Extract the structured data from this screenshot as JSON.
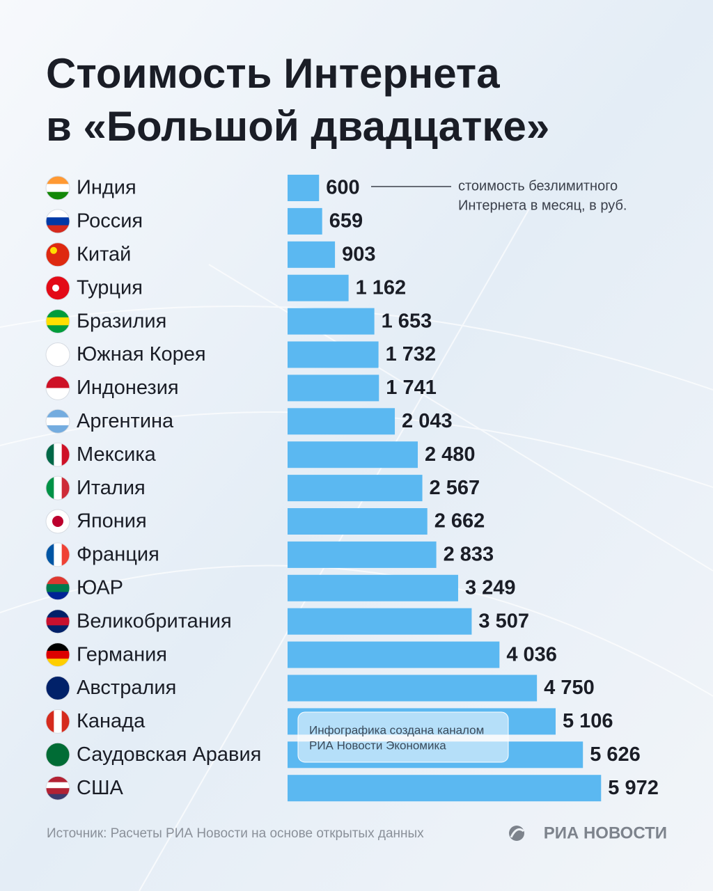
{
  "chart_data": {
    "type": "bar",
    "orientation": "horizontal",
    "title": [
      "Стоимость Интернета",
      "в «Большой двадцатке»"
    ],
    "annotation": [
      "стоимость безлимитного",
      "Интернета в месяц, в руб."
    ],
    "categories": [
      "Индия",
      "Россия",
      "Китай",
      "Турция",
      "Бразилия",
      "Южная Корея",
      "Индонезия",
      "Аргентина",
      "Мексика",
      "Италия",
      "Япония",
      "Франция",
      "ЮАР",
      "Великобритания",
      "Германия",
      "Австралия",
      "Канада",
      "Саудовская Аравия",
      "США"
    ],
    "values": [
      600,
      659,
      903,
      1162,
      1653,
      1732,
      1741,
      2043,
      2480,
      2567,
      2662,
      2833,
      3249,
      3507,
      4036,
      4750,
      5106,
      5626,
      5972
    ],
    "value_labels": [
      "600",
      "659",
      "903",
      "1 162",
      "1 653",
      "1 732",
      "1 741",
      "2 043",
      "2 480",
      "2 567",
      "2 662",
      "2 833",
      "3 249",
      "3 507",
      "4 036",
      "4 750",
      "5 106",
      "5 626",
      "5 972"
    ],
    "color": "#5bb8f1",
    "watermark": [
      "Инфографика создана каналом",
      "РИА Новости Экономика"
    ],
    "source": "Источник: Расчеты РИА Новости на основе открытых данных",
    "logo": "РИА НОВОСТИ"
  }
}
